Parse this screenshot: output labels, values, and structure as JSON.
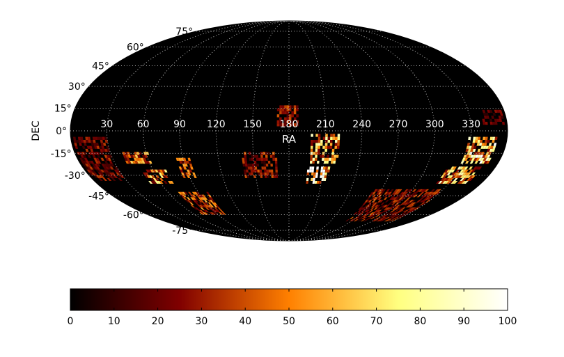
{
  "chart_data": {
    "type": "heatmap",
    "projection": "mollweide",
    "xlabel": "RA",
    "ylabel": "DEC",
    "ra_ticks": [
      "30",
      "60",
      "90",
      "120",
      "150",
      "180",
      "210",
      "240",
      "270",
      "300",
      "330"
    ],
    "ra_tick_values": [
      30,
      60,
      90,
      120,
      150,
      180,
      210,
      240,
      270,
      300,
      330
    ],
    "dec_ticks": [
      "75°",
      "60°",
      "45°",
      "30°",
      "15°",
      "0°",
      "-15°",
      "-30°",
      "-45°",
      "-60°",
      "-75°"
    ],
    "dec_tick_values": [
      75,
      60,
      45,
      30,
      15,
      0,
      -15,
      -30,
      -45,
      -60,
      -75
    ],
    "grid": true,
    "colormap": "afmhot",
    "background_color": "#000000",
    "colorbar": {
      "range": [
        0,
        100
      ],
      "ticks": [
        "0",
        "10",
        "20",
        "30",
        "40",
        "50",
        "60",
        "70",
        "80",
        "90",
        "100"
      ],
      "orientation": "horizontal",
      "placement": "bottom"
    },
    "regions": [
      {
        "ra": [
          170,
          188
        ],
        "dec": [
          3,
          17
        ],
        "value": 30
      },
      {
        "ra": [
          198,
          222
        ],
        "dec": [
          -22,
          -2
        ],
        "value": 60
      },
      {
        "ra": [
          196,
          216
        ],
        "dec": [
          -36,
          -24
        ],
        "value": 90
      },
      {
        "ra": [
          2,
          30
        ],
        "dec": [
          -34,
          -4
        ],
        "value": 25
      },
      {
        "ra": [
          40,
          62
        ],
        "dec": [
          -22,
          -14
        ],
        "value": 45
      },
      {
        "ra": [
          50,
          72
        ],
        "dec": [
          -36,
          -26
        ],
        "value": 55
      },
      {
        "ra": [
          84,
          96
        ],
        "dec": [
          -32,
          -18
        ],
        "value": 40
      },
      {
        "ra": [
          140,
          170
        ],
        "dec": [
          -32,
          -14
        ],
        "value": 30
      },
      {
        "ra": [
          328,
          352
        ],
        "dec": [
          -22,
          -4
        ],
        "value": 70
      },
      {
        "ra": [
          318,
          348
        ],
        "dec": [
          -36,
          -24
        ],
        "value": 60
      },
      {
        "ra": [
          262,
          330
        ],
        "dec": [
          -66,
          -40
        ],
        "value": 28
      },
      {
        "ra": [
          70,
          100
        ],
        "dec": [
          -60,
          -42
        ],
        "value": 40
      },
      {
        "ra": [
          340,
          358
        ],
        "dec": [
          4,
          14
        ],
        "value": 20
      }
    ]
  }
}
